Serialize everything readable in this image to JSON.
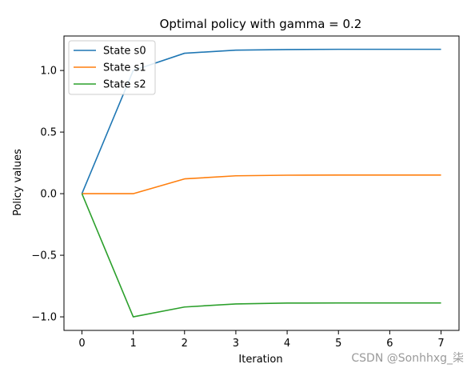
{
  "chart_data": {
    "type": "line",
    "title": "Optimal policy with gamma = 0.2",
    "xlabel": "Iteration",
    "ylabel": "Policy values",
    "x": [
      0,
      1,
      2,
      3,
      4,
      5,
      6,
      7
    ],
    "xticks": [
      "0",
      "1",
      "2",
      "3",
      "4",
      "5",
      "6",
      "7"
    ],
    "yticks": [
      {
        "value": 1.0,
        "label": "1.0"
      },
      {
        "value": 0.5,
        "label": "0.5"
      },
      {
        "value": 0.0,
        "label": "0.0"
      },
      {
        "value": -0.5,
        "label": "−0.5"
      },
      {
        "value": -1.0,
        "label": "−1.0"
      }
    ],
    "xlim": [
      -0.35,
      7.35
    ],
    "ylim": [
      -1.11,
      1.28
    ],
    "grid": false,
    "legend_position": "top-left",
    "series": [
      {
        "name": "State s0",
        "color": "#1f77b4",
        "values": [
          0.0,
          1.0,
          1.14,
          1.165,
          1.17,
          1.172,
          1.172,
          1.172
        ]
      },
      {
        "name": "State s1",
        "color": "#ff7f0e",
        "values": [
          0.0,
          0.0,
          0.12,
          0.145,
          0.15,
          0.151,
          0.151,
          0.151
        ]
      },
      {
        "name": "State s2",
        "color": "#2ca02c",
        "values": [
          0.0,
          -1.0,
          -0.92,
          -0.895,
          -0.888,
          -0.887,
          -0.887,
          -0.887
        ]
      }
    ]
  },
  "watermark": "CSDN @Sonhhxg_柒"
}
